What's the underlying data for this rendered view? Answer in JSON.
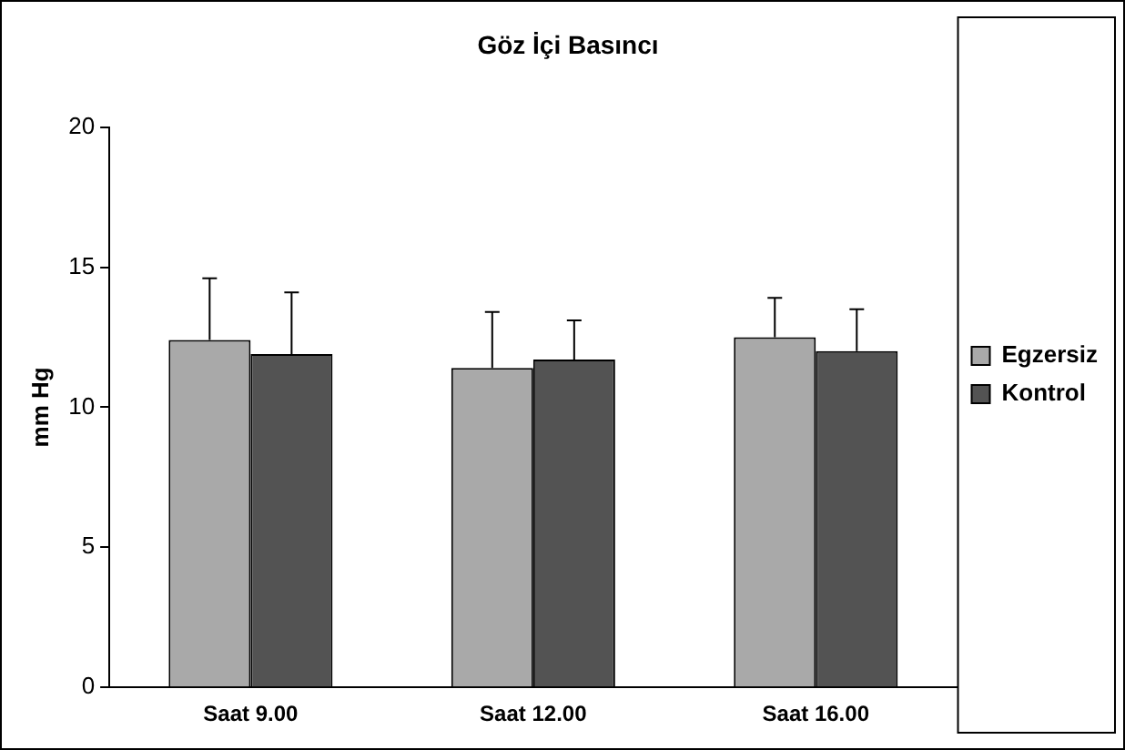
{
  "chart_data": {
    "type": "bar",
    "title": "Göz İçi Basıncı",
    "ylabel": "mm Hg",
    "categories": [
      "Saat 9.00",
      "Saat 12.00",
      "Saat 16.00"
    ],
    "series": [
      {
        "name": "Egzersiz",
        "color": "#a9a9a9",
        "values": [
          12.4,
          11.4,
          12.5
        ],
        "errors": [
          [
            12.4,
            14.6
          ],
          [
            11.4,
            13.4
          ],
          [
            12.5,
            13.9
          ]
        ]
      },
      {
        "name": "Kontrol",
        "color": "#535353",
        "values": [
          11.9,
          11.7,
          12.0
        ],
        "errors": [
          [
            11.9,
            14.1
          ],
          [
            11.7,
            13.1
          ],
          [
            12.0,
            13.5
          ]
        ]
      }
    ],
    "ylim": [
      0,
      20
    ],
    "yticks": [
      0,
      5,
      10,
      15,
      20
    ],
    "grid": false,
    "legend": "right"
  }
}
